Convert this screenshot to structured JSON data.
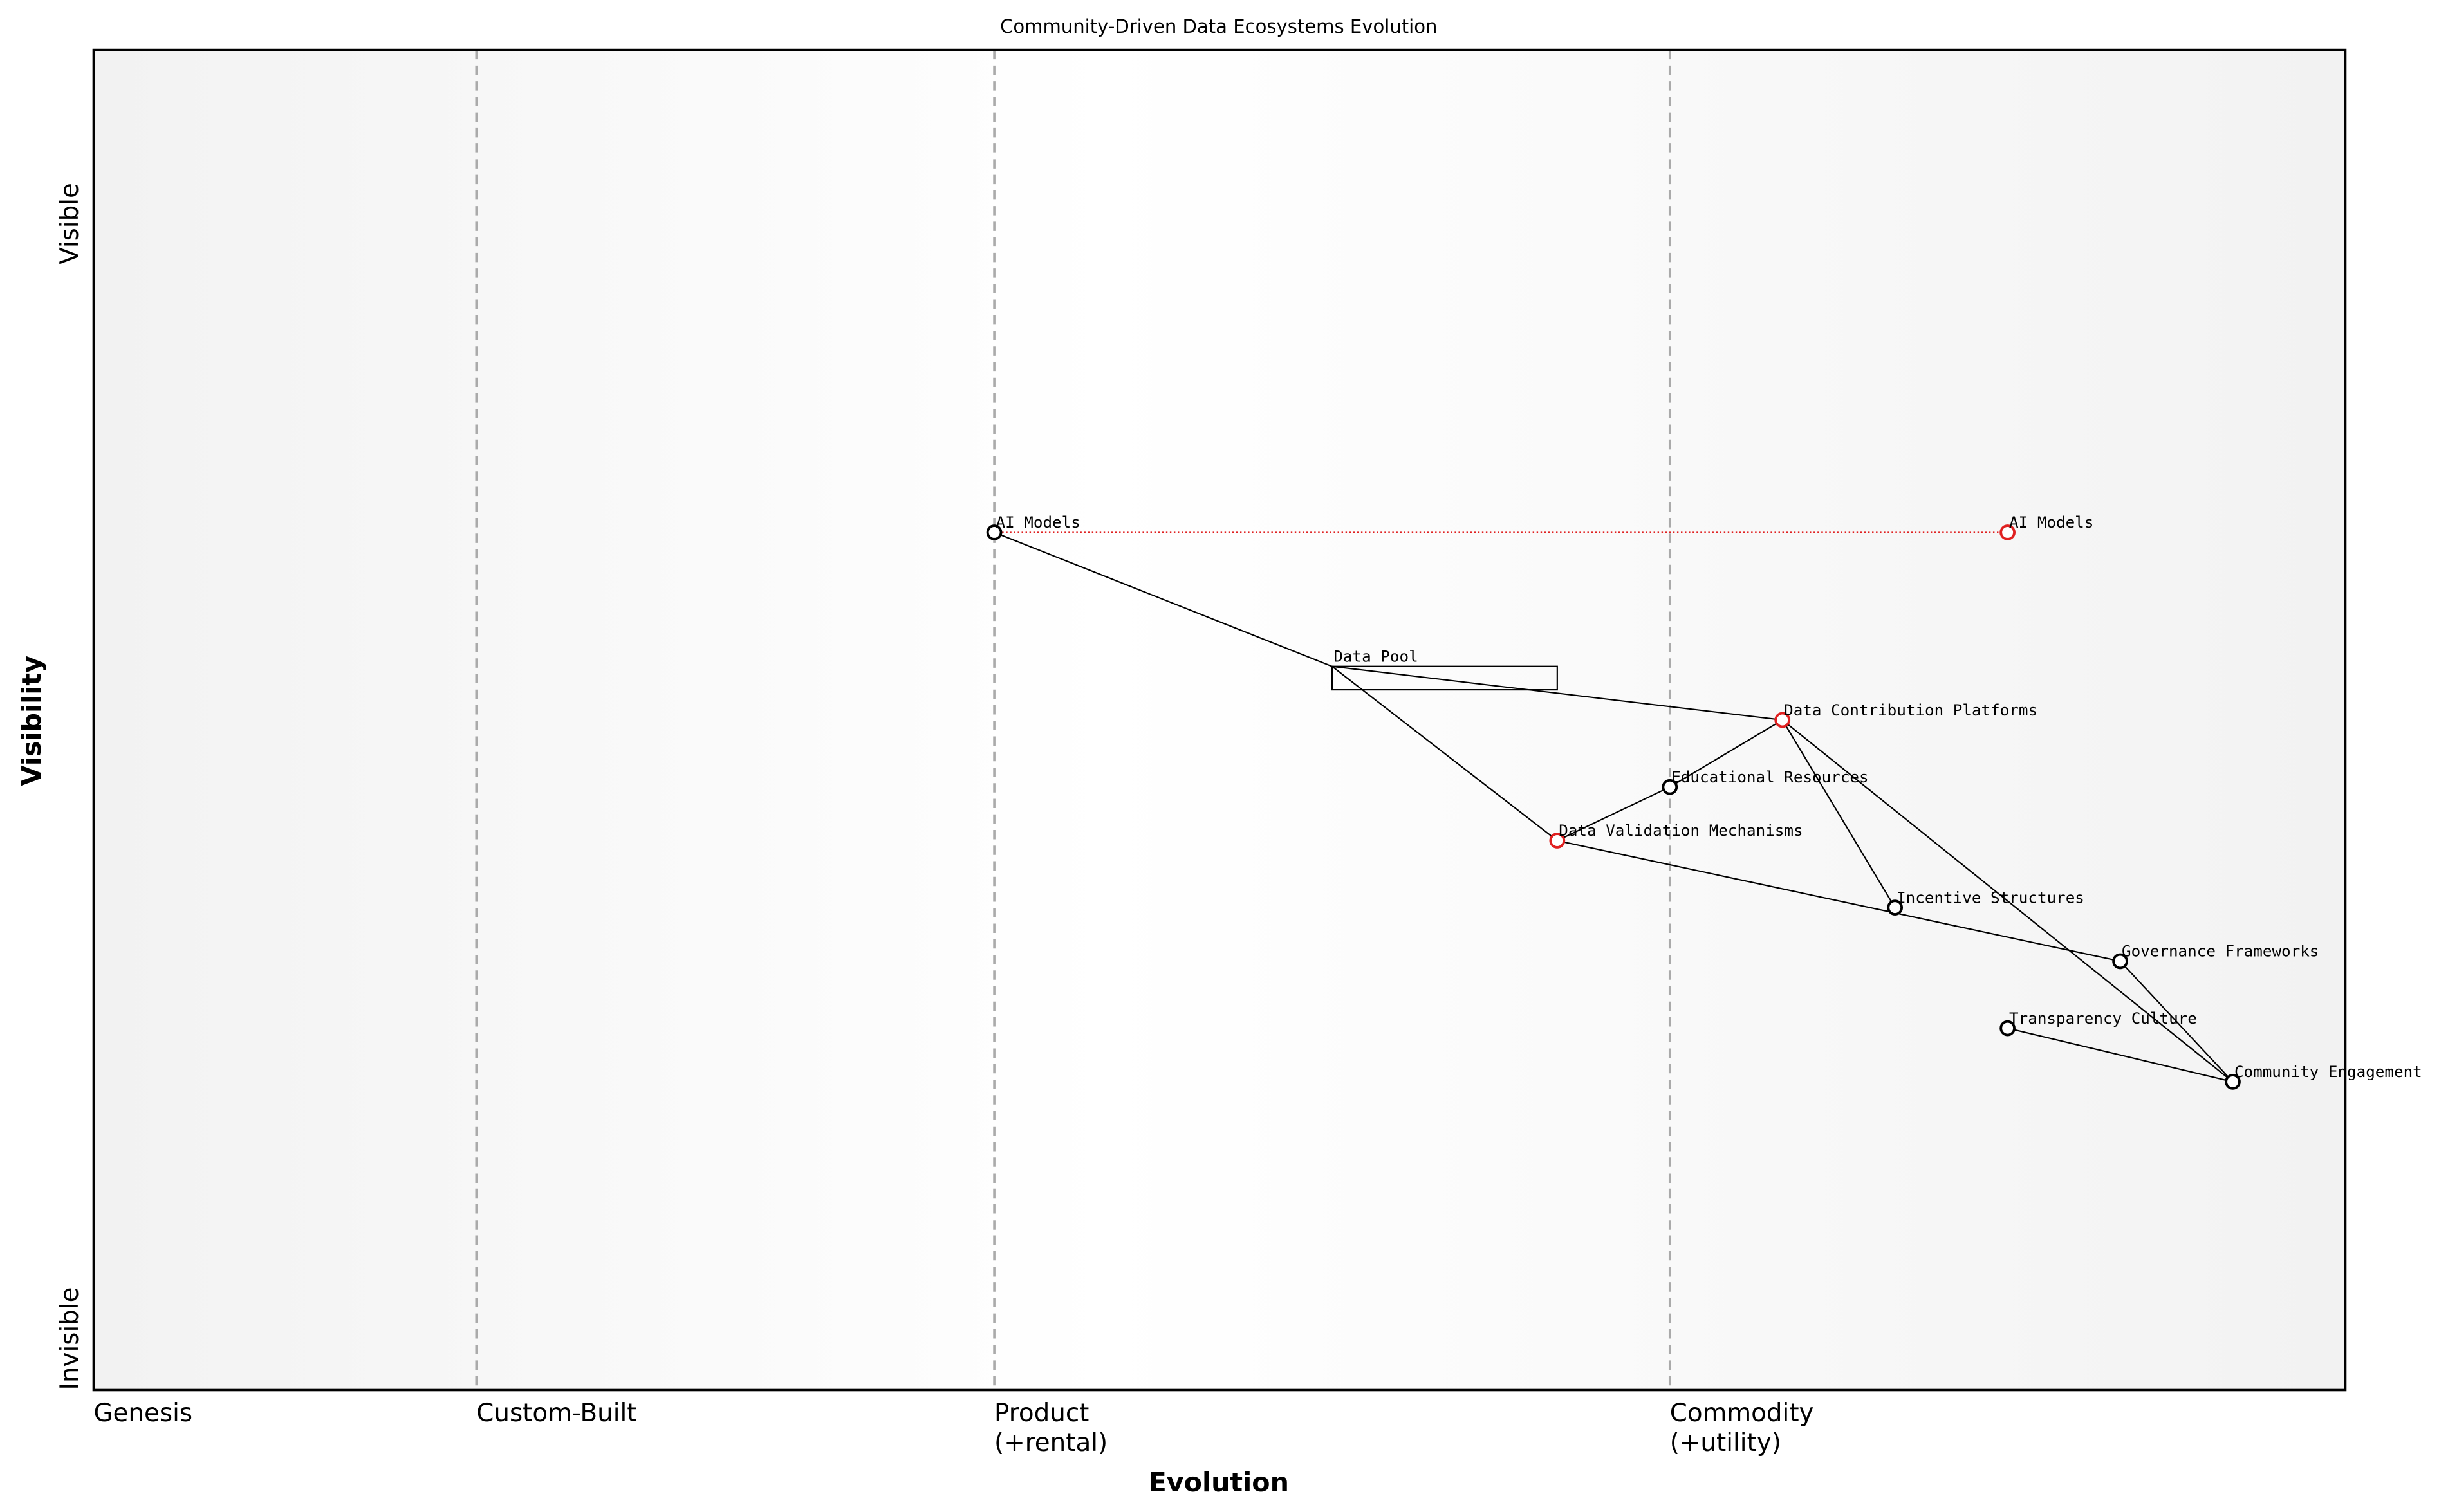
{
  "chart_data": {
    "type": "wardley",
    "title": "Community-Driven Data Ecosystems Evolution",
    "x_label": "Evolution",
    "y_label": "Visibility",
    "xlim": [
      0,
      1
    ],
    "ylim": [
      0,
      1
    ],
    "xticks": [
      {
        "value": 0,
        "label": "Genesis"
      },
      {
        "value": 0.17,
        "label": "Custom-Built"
      },
      {
        "value": 0.4,
        "label": "Product\n(+rental)"
      },
      {
        "value": 0.7,
        "label": "Commodity\n(+utility)"
      }
    ],
    "yticks": [
      {
        "value": 0,
        "label": "Invisible"
      },
      {
        "value": 0.84,
        "label": "Visible"
      }
    ],
    "components": [
      {
        "name": "AI Models",
        "x": 0.4,
        "y": 0.64,
        "color": "#000000"
      },
      {
        "name": "Data Pool",
        "x": 0.55,
        "y": 0.54,
        "color": "#000000"
      },
      {
        "name": "Data Contribution Platforms",
        "x": 0.75,
        "y": 0.5,
        "color": "#e02020"
      },
      {
        "name": "Educational Resources",
        "x": 0.7,
        "y": 0.45,
        "color": "#000000"
      },
      {
        "name": "Data Validation Mechanisms",
        "x": 0.65,
        "y": 0.41,
        "color": "#e02020"
      },
      {
        "name": "Incentive Structures",
        "x": 0.8,
        "y": 0.36,
        "color": "#000000"
      },
      {
        "name": "Governance Frameworks",
        "x": 0.9,
        "y": 0.32,
        "color": "#000000"
      },
      {
        "name": "Transparency Culture",
        "x": 0.85,
        "y": 0.27,
        "color": "#000000"
      },
      {
        "name": "Community Engagement",
        "x": 0.95,
        "y": 0.23,
        "color": "#000000"
      },
      {
        "name": "AI Models",
        "x": 0.85,
        "y": 0.64,
        "color": "#e02020"
      }
    ],
    "pipelines": [
      {
        "component": 1,
        "x_start": 0.55,
        "x_end": 0.65
      }
    ],
    "links": [
      [
        0,
        1
      ],
      [
        1,
        2
      ],
      [
        1,
        4
      ],
      [
        2,
        3
      ],
      [
        3,
        4
      ],
      [
        2,
        5
      ],
      [
        2,
        8
      ],
      [
        4,
        6
      ],
      [
        6,
        8
      ],
      [
        7,
        8
      ]
    ],
    "evolutions": [
      {
        "from": 0,
        "to": 9,
        "color": "#e02020"
      }
    ]
  }
}
